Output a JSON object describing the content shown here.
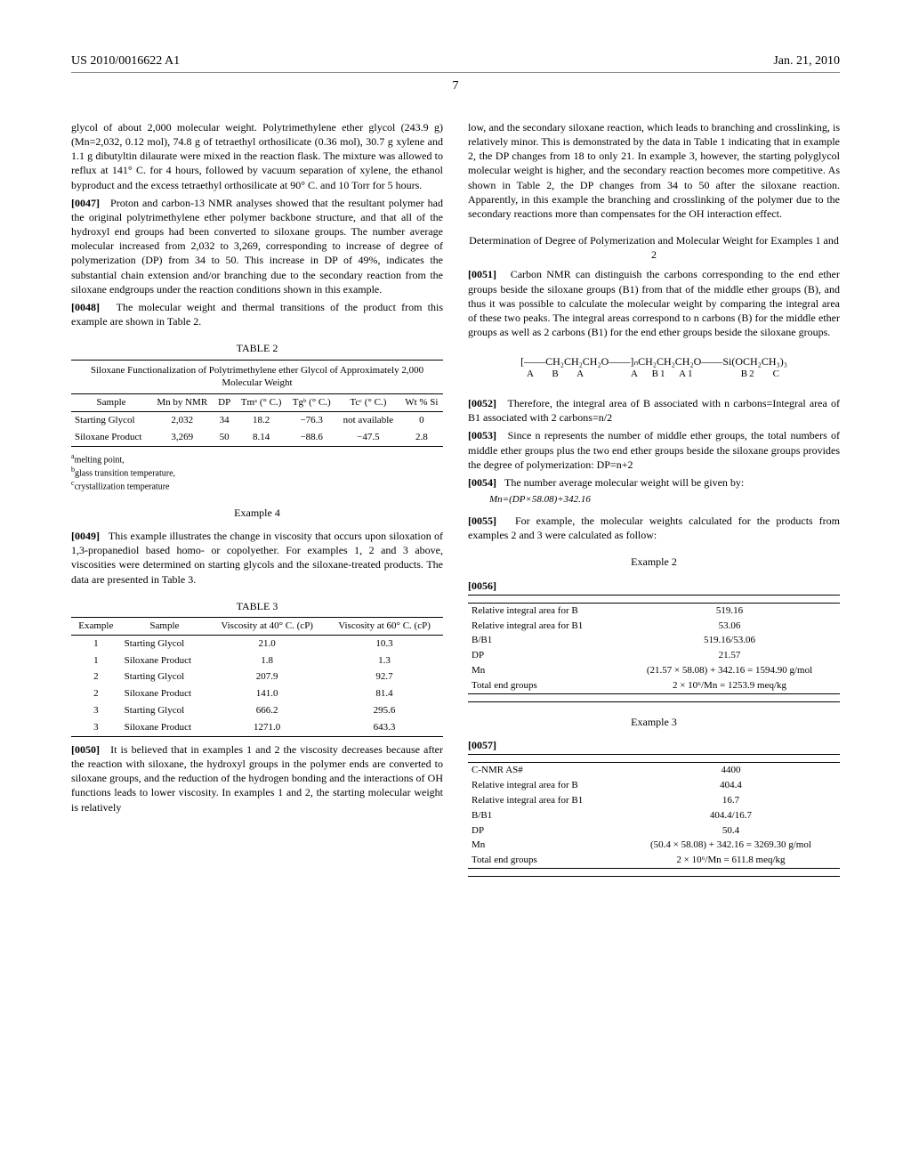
{
  "header": {
    "patent_no": "US 2010/0016622 A1",
    "date": "Jan. 21, 2010",
    "page": "7"
  },
  "left": {
    "p1": "glycol of about 2,000 molecular weight. Polytrimethylene ether glycol (243.9 g) (Mn=2,032, 0.12 mol), 74.8 g of tetraethyl orthosilicate (0.36 mol), 30.7 g xylene and 1.1 g dibutyltin dilaurate were mixed in the reaction flask. The mixture was allowed to reflux at 141° C. for 4 hours, followed by vacuum separation of xylene, the ethanol byproduct and the excess tetraethyl orthosilicate at 90° C. and 10 Torr for 5 hours.",
    "p47_num": "[0047]",
    "p47": "Proton and carbon-13 NMR analyses showed that the resultant polymer had the original polytrimethylene ether polymer backbone structure, and that all of the hydroxyl end groups had been converted to siloxane groups. The number average molecular increased from 2,032 to 3,269, corresponding to increase of degree of polymerization (DP) from 34 to 50. This increase in DP of 49%, indicates the substantial chain extension and/or branching due to the secondary reaction from the siloxane endgroups under the reaction conditions shown in this example.",
    "p48_num": "[0048]",
    "p48": "The molecular weight and thermal transitions of the product from this example are shown in Table 2.",
    "table2": {
      "label": "TABLE 2",
      "caption": "Siloxane Functionalization of Polytrimethylene ether Glycol of Approximately 2,000 Molecular Weight",
      "headers": [
        "Sample",
        "Mn by NMR",
        "DP",
        "Tmᵃ (° C.)",
        "Tgᵇ (° C.)",
        "Tcᶜ (° C.)",
        "Wt % Si"
      ],
      "row1": [
        "Starting Glycol",
        "2,032",
        "34",
        "18.2",
        "−76.3",
        "not available",
        "0"
      ],
      "row2": [
        "Siloxane Product",
        "3,269",
        "50",
        "8.14",
        "−88.6",
        "−47.5",
        "2.8"
      ],
      "fn_a": "melting point,",
      "fn_b": "glass transition temperature,",
      "fn_c": "crystallization temperature"
    },
    "ex4_title": "Example 4",
    "p49_num": "[0049]",
    "p49": "This example illustrates the change in viscosity that occurs upon siloxation of 1,3-propanediol based homo- or copolyether. For examples 1, 2 and 3 above, viscosities were determined on starting glycols and the siloxane-treated products. The data are presented in Table 3.",
    "table3": {
      "label": "TABLE 3",
      "headers": [
        "Example",
        "Sample",
        "Viscosity at 40° C. (cP)",
        "Viscosity at 60° C. (cP)"
      ],
      "rows": [
        [
          "1",
          "Starting Glycol",
          "21.0",
          "10.3"
        ],
        [
          "1",
          "Siloxane Product",
          "1.8",
          "1.3"
        ],
        [
          "2",
          "Starting Glycol",
          "207.9",
          "92.7"
        ],
        [
          "2",
          "Siloxane Product",
          "141.0",
          "81.4"
        ],
        [
          "3",
          "Starting Glycol",
          "666.2",
          "295.6"
        ],
        [
          "3",
          "Siloxane Product",
          "1271.0",
          "643.3"
        ]
      ]
    },
    "p50_num": "[0050]",
    "p50": "It is believed that in examples 1 and 2 the viscosity decreases because after the reaction with siloxane, the hydroxyl groups in the polymer ends are converted to siloxane groups, and the reduction of the hydrogen bonding and the interactions of OH functions leads to lower viscosity. In examples 1 and 2, the starting molecular weight is relatively"
  },
  "right": {
    "p1": "low, and the secondary siloxane reaction, which leads to branching and crosslinking, is relatively minor. This is demonstrated by the data in Table 1 indicating that in example 2, the DP changes from 18 to only 21. In example 3, however, the starting polyglycol molecular weight is higher, and the secondary reaction becomes more competitive. As shown in Table 2, the DP changes from 34 to 50 after the siloxane reaction. Apparently, in this example the branching and crosslinking of the polymer due to the secondary reactions more than compensates for the OH interaction effect.",
    "det_title": "Determination of Degree of Polymerization and Molecular Weight for Examples 1 and 2",
    "p51_num": "[0051]",
    "p51": "Carbon NMR can distinguish the carbons corresponding to the end ether groups beside the siloxane groups (B1) from that of the middle ether groups (B), and thus it was possible to calculate the molecular weight by comparing the integral area of these two peaks. The integral areas correspond to n carbons (B) for the middle ether groups as well as 2 carbons (B1) for the end ether groups beside the siloxane groups.",
    "formula_top": "[——CH₂CH₂CH₂O——]ₙCH₂CH₂CH₂O——Si(OCH₂CH₃)₃",
    "formula_labels": "A    B    A           A   B1   A1           B2    C",
    "p52_num": "[0052]",
    "p52": "Therefore, the integral area of B associated with n carbons=Integral area of B1 associated with 2 carbons=n/2",
    "p53_num": "[0053]",
    "p53": "Since n represents the number of middle ether groups, the total numbers of middle ether groups plus the two end ether groups beside the siloxane groups provides the degree of polymerization: DP=n+2",
    "p54_num": "[0054]",
    "p54": "The number average molecular weight will be given by:",
    "mn_formula": "Mn=(DP×58.08)+342.16",
    "p55_num": "[0055]",
    "p55": "For example, the molecular weights calculated for the products from examples 2 and 3 were calculated as follow:",
    "ex2_title": "Example 2",
    "p56_num": "[0056]",
    "ex2_table": {
      "rows": [
        [
          "Relative integral area for B",
          "519.16"
        ],
        [
          "Relative integral area for B1",
          "53.06"
        ],
        [
          "B/B1",
          "519.16/53.06"
        ],
        [
          "DP",
          "21.57"
        ],
        [
          "Mn",
          "(21.57 × 58.08) + 342.16 = 1594.90 g/mol"
        ],
        [
          "Total end groups",
          "2 × 10⁶/Mn = 1253.9 meq/kg"
        ]
      ]
    },
    "ex3_title": "Example 3",
    "p57_num": "[0057]",
    "ex3_table": {
      "rows": [
        [
          "C-NMR AS#",
          "4400"
        ],
        [
          "Relative integral area for B",
          "404.4"
        ],
        [
          "Relative integral area for B1",
          "16.7"
        ],
        [
          "B/B1",
          "404.4/16.7"
        ],
        [
          "DP",
          "50.4"
        ],
        [
          "Mn",
          "(50.4 × 58.08) + 342.16 = 3269.30 g/mol"
        ],
        [
          "Total end groups",
          "2 × 10⁶/Mn = 611.8 meq/kg"
        ]
      ]
    }
  }
}
